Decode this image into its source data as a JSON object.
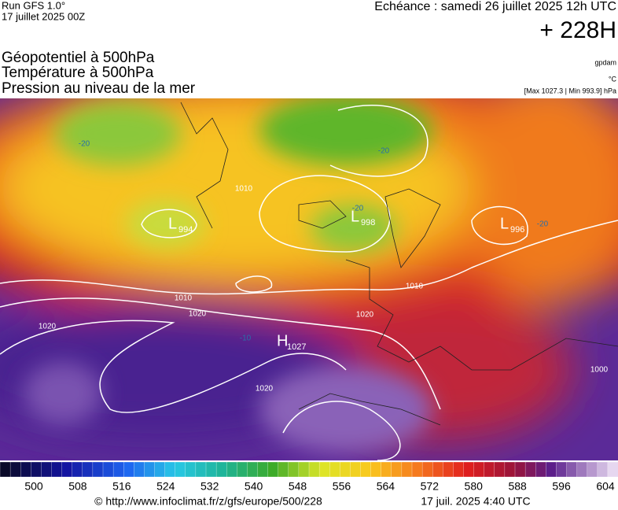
{
  "header": {
    "run": "Run GFS 1.0°",
    "run_date": "17 juillet 2025 00Z",
    "valid": "Echéance : samedi 26 juillet 2025 12h UTC",
    "lead": "+ 228H"
  },
  "titles": [
    "Géopotentiel à 500hPa",
    "Température à 500hPa",
    "Pression au niveau de la mer"
  ],
  "units": {
    "geopotential": "gpdam",
    "temperature": "°C",
    "pressure": "[Max 1027.3 | Min 993.9] hPa"
  },
  "map": {
    "centers": [
      {
        "symbol": "L",
        "value": 994
      },
      {
        "symbol": "L",
        "value": 998
      },
      {
        "symbol": "L",
        "value": 996
      },
      {
        "symbol": "H",
        "value": 1027
      }
    ],
    "isobar_labels": [
      1010,
      1020,
      1020,
      1010,
      1020,
      1000,
      1020,
      1010
    ],
    "isotherm_labels": [
      -20,
      -20,
      -20,
      -20,
      -10
    ]
  },
  "colorbar": {
    "labels": [
      500,
      508,
      516,
      524,
      532,
      540,
      548,
      556,
      564,
      572,
      580,
      588,
      596,
      604
    ]
  },
  "footer": {
    "source": "© http://www.infoclimat.fr/z/gfs/europe/500/228",
    "generated": "17 juil. 2025  4:40 UTC"
  }
}
